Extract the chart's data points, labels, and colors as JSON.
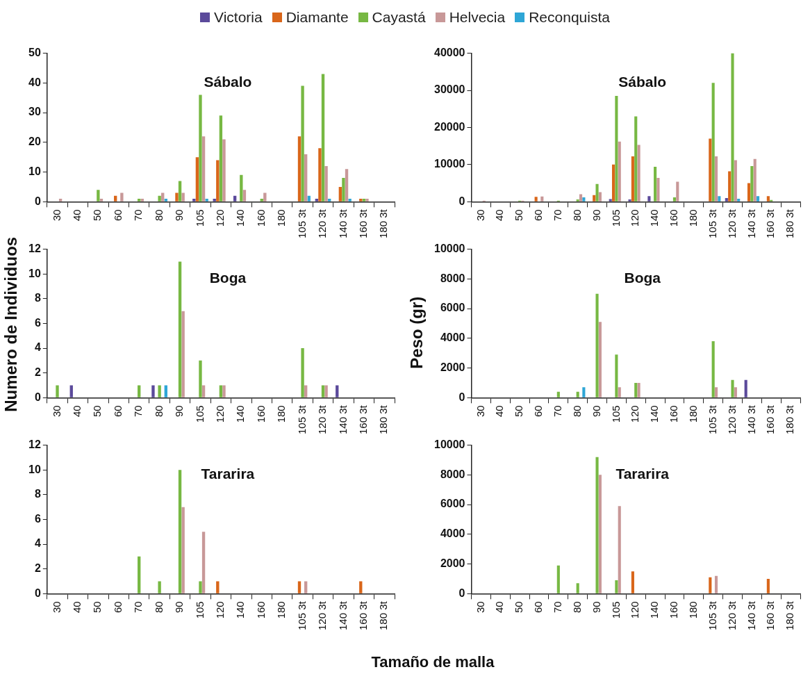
{
  "chart_data": [
    {
      "type": "bar",
      "title": "Sábalo",
      "legend": "top",
      "categories": [
        "30",
        "40",
        "50",
        "60",
        "70",
        "80",
        "90",
        "105",
        "120",
        "140",
        "160",
        "180",
        "105 3t",
        "120 3t",
        "140 3t",
        "160 3t",
        "180 3t"
      ],
      "ylim": [
        0,
        50
      ],
      "yticks": [
        0,
        10,
        20,
        30,
        40,
        50
      ],
      "series": [
        {
          "name": "Victoria",
          "color": "#5b4a9b",
          "values": [
            0,
            0,
            0,
            0,
            0,
            0,
            0,
            1,
            1,
            2,
            0,
            0,
            0,
            1,
            0,
            0,
            0
          ]
        },
        {
          "name": "Diamante",
          "color": "#d9661a",
          "values": [
            0,
            0,
            0,
            2,
            0,
            0,
            3,
            15,
            14,
            0,
            0,
            0,
            22,
            18,
            5,
            1,
            0
          ]
        },
        {
          "name": "Cayastá",
          "color": "#77b843",
          "values": [
            0,
            0,
            4,
            0,
            1,
            2,
            7,
            36,
            29,
            9,
            1,
            0,
            39,
            43,
            8,
            1,
            0
          ]
        },
        {
          "name": "Helvecia",
          "color": "#c89898",
          "values": [
            1,
            0,
            1,
            3,
            1,
            3,
            3,
            22,
            21,
            4,
            3,
            0,
            16,
            12,
            11,
            1,
            0
          ]
        },
        {
          "name": "Reconquista",
          "color": "#2ea6d6",
          "values": [
            0,
            0,
            0,
            0,
            0,
            1,
            0,
            1,
            0,
            0,
            0,
            0,
            2,
            1,
            1,
            0,
            0
          ]
        }
      ]
    },
    {
      "type": "bar",
      "title": "Sábalo",
      "categories": [
        "30",
        "40",
        "50",
        "60",
        "70",
        "80",
        "90",
        "105",
        "120",
        "140",
        "160",
        "180",
        "105 3t",
        "120 3t",
        "140 3t",
        "160 3t",
        "180 3t"
      ],
      "ylim": [
        0,
        40000
      ],
      "yticks": [
        0,
        10000,
        20000,
        30000,
        40000
      ],
      "series": [
        {
          "color": "#5b4a9b",
          "values": [
            0,
            0,
            0,
            0,
            0,
            0,
            0,
            700,
            600,
            1500,
            0,
            0,
            0,
            1000,
            0,
            0,
            0
          ]
        },
        {
          "color": "#d9661a",
          "values": [
            0,
            0,
            0,
            1300,
            0,
            0,
            1800,
            10000,
            12200,
            0,
            0,
            0,
            17000,
            8200,
            5000,
            1500,
            0
          ]
        },
        {
          "color": "#77b843",
          "values": [
            0,
            0,
            300,
            0,
            300,
            600,
            4800,
            28500,
            23000,
            9400,
            1200,
            0,
            32000,
            40000,
            9600,
            500,
            0
          ]
        },
        {
          "color": "#c89898",
          "values": [
            300,
            0,
            300,
            1400,
            0,
            2000,
            2600,
            16200,
            15300,
            6400,
            5400,
            0,
            12200,
            11200,
            11500,
            0,
            0
          ]
        },
        {
          "color": "#2ea6d6",
          "values": [
            0,
            0,
            0,
            0,
            0,
            1200,
            0,
            0,
            0,
            0,
            0,
            0,
            1500,
            800,
            1500,
            0,
            0
          ]
        }
      ]
    },
    {
      "type": "bar",
      "title": "Boga",
      "ylabel": "Numero de Individuos",
      "categories": [
        "30",
        "40",
        "50",
        "60",
        "70",
        "80",
        "90",
        "105",
        "120",
        "140",
        "160",
        "180",
        "105 3t",
        "120 3t",
        "140 3t",
        "160 3t",
        "180 3t"
      ],
      "ylim": [
        0,
        12
      ],
      "yticks": [
        0,
        2,
        4,
        6,
        8,
        10,
        12
      ],
      "series": [
        {
          "color": "#5b4a9b",
          "values": [
            0,
            1,
            0,
            0,
            0,
            1,
            0,
            0,
            0,
            0,
            0,
            0,
            0,
            0,
            1,
            0,
            0
          ]
        },
        {
          "color": "#d9661a",
          "values": [
            0,
            0,
            0,
            0,
            0,
            0,
            0,
            0,
            0,
            0,
            0,
            0,
            0,
            0,
            0,
            0,
            0
          ]
        },
        {
          "color": "#77b843",
          "values": [
            1,
            0,
            0,
            0,
            1,
            1,
            11,
            3,
            1,
            0,
            0,
            0,
            4,
            1,
            0,
            0,
            0
          ]
        },
        {
          "color": "#c89898",
          "values": [
            0,
            0,
            0,
            0,
            0,
            0,
            7,
            1,
            1,
            0,
            0,
            0,
            1,
            1,
            0,
            0,
            0
          ]
        },
        {
          "color": "#2ea6d6",
          "values": [
            0,
            0,
            0,
            0,
            0,
            1,
            0,
            0,
            0,
            0,
            0,
            0,
            0,
            0,
            0,
            0,
            0
          ]
        }
      ]
    },
    {
      "type": "bar",
      "title": "Boga",
      "ylabel": "Peso (gr)",
      "categories": [
        "30",
        "40",
        "50",
        "60",
        "70",
        "80",
        "90",
        "105",
        "120",
        "140",
        "160",
        "180",
        "105 3t",
        "120 3t",
        "140 3t",
        "160 3t",
        "180 3t"
      ],
      "ylim": [
        0,
        10000
      ],
      "yticks": [
        0,
        2000,
        4000,
        6000,
        8000,
        10000
      ],
      "series": [
        {
          "color": "#5b4a9b",
          "values": [
            0,
            0,
            0,
            0,
            0,
            0,
            0,
            0,
            0,
            0,
            0,
            0,
            0,
            0,
            1200,
            0,
            0
          ]
        },
        {
          "color": "#d9661a",
          "values": [
            0,
            0,
            0,
            0,
            0,
            0,
            0,
            0,
            0,
            0,
            0,
            0,
            0,
            0,
            0,
            0,
            0
          ]
        },
        {
          "color": "#77b843",
          "values": [
            0,
            0,
            0,
            0,
            400,
            400,
            7000,
            2900,
            1000,
            0,
            0,
            0,
            3800,
            1200,
            0,
            0,
            0
          ]
        },
        {
          "color": "#c89898",
          "values": [
            0,
            0,
            0,
            0,
            0,
            0,
            5100,
            700,
            1000,
            0,
            0,
            0,
            700,
            700,
            0,
            0,
            0
          ]
        },
        {
          "color": "#2ea6d6",
          "values": [
            0,
            0,
            0,
            0,
            0,
            700,
            0,
            0,
            0,
            0,
            0,
            0,
            0,
            0,
            0,
            0,
            0
          ]
        }
      ]
    },
    {
      "type": "bar",
      "title": "Tararira",
      "xlabel": "Tamaño de malla",
      "categories": [
        "30",
        "40",
        "50",
        "60",
        "70",
        "80",
        "90",
        "105",
        "120",
        "140",
        "160",
        "180",
        "105 3t",
        "120 3t",
        "140 3t",
        "160 3t",
        "180 3t"
      ],
      "ylim": [
        0,
        12
      ],
      "yticks": [
        0,
        2,
        4,
        6,
        8,
        10,
        12
      ],
      "series": [
        {
          "color": "#5b4a9b",
          "values": [
            0,
            0,
            0,
            0,
            0,
            0,
            0,
            0,
            0,
            0,
            0,
            0,
            0,
            0,
            0,
            0,
            0
          ]
        },
        {
          "color": "#d9661a",
          "values": [
            0,
            0,
            0,
            0,
            0,
            0,
            0,
            0,
            1,
            0,
            0,
            0,
            1,
            0,
            0,
            1,
            0
          ]
        },
        {
          "color": "#77b843",
          "values": [
            0,
            0,
            0,
            0,
            3,
            1,
            10,
            1,
            0,
            0,
            0,
            0,
            0,
            0,
            0,
            0,
            0
          ]
        },
        {
          "color": "#c89898",
          "values": [
            0,
            0,
            0,
            0,
            0,
            0,
            7,
            5,
            0,
            0,
            0,
            0,
            1,
            0,
            0,
            0,
            0
          ]
        },
        {
          "color": "#2ea6d6",
          "values": [
            0,
            0,
            0,
            0,
            0,
            0,
            0,
            0,
            0,
            0,
            0,
            0,
            0,
            0,
            0,
            0,
            0
          ]
        }
      ]
    },
    {
      "type": "bar",
      "title": "Tararira",
      "categories": [
        "30",
        "40",
        "50",
        "60",
        "70",
        "80",
        "90",
        "105",
        "120",
        "140",
        "160",
        "180",
        "105 3t",
        "120 3t",
        "140 3t",
        "160 3t",
        "180 3t"
      ],
      "ylim": [
        0,
        10000
      ],
      "yticks": [
        0,
        2000,
        4000,
        6000,
        8000,
        10000
      ],
      "series": [
        {
          "color": "#5b4a9b",
          "values": [
            0,
            0,
            0,
            0,
            0,
            0,
            0,
            0,
            0,
            0,
            0,
            0,
            0,
            0,
            0,
            0,
            0
          ]
        },
        {
          "color": "#d9661a",
          "values": [
            0,
            0,
            0,
            0,
            0,
            0,
            0,
            0,
            1500,
            0,
            0,
            0,
            1100,
            0,
            0,
            1000,
            0
          ]
        },
        {
          "color": "#77b843",
          "values": [
            0,
            0,
            0,
            0,
            1900,
            700,
            9200,
            900,
            0,
            0,
            0,
            0,
            0,
            0,
            0,
            0,
            0
          ]
        },
        {
          "color": "#c89898",
          "values": [
            0,
            0,
            0,
            0,
            0,
            0,
            8000,
            5900,
            0,
            0,
            0,
            0,
            1200,
            0,
            0,
            0,
            0
          ]
        },
        {
          "color": "#2ea6d6",
          "values": [
            0,
            0,
            0,
            0,
            0,
            0,
            0,
            0,
            0,
            0,
            0,
            0,
            0,
            0,
            0,
            0,
            0
          ]
        }
      ]
    }
  ]
}
